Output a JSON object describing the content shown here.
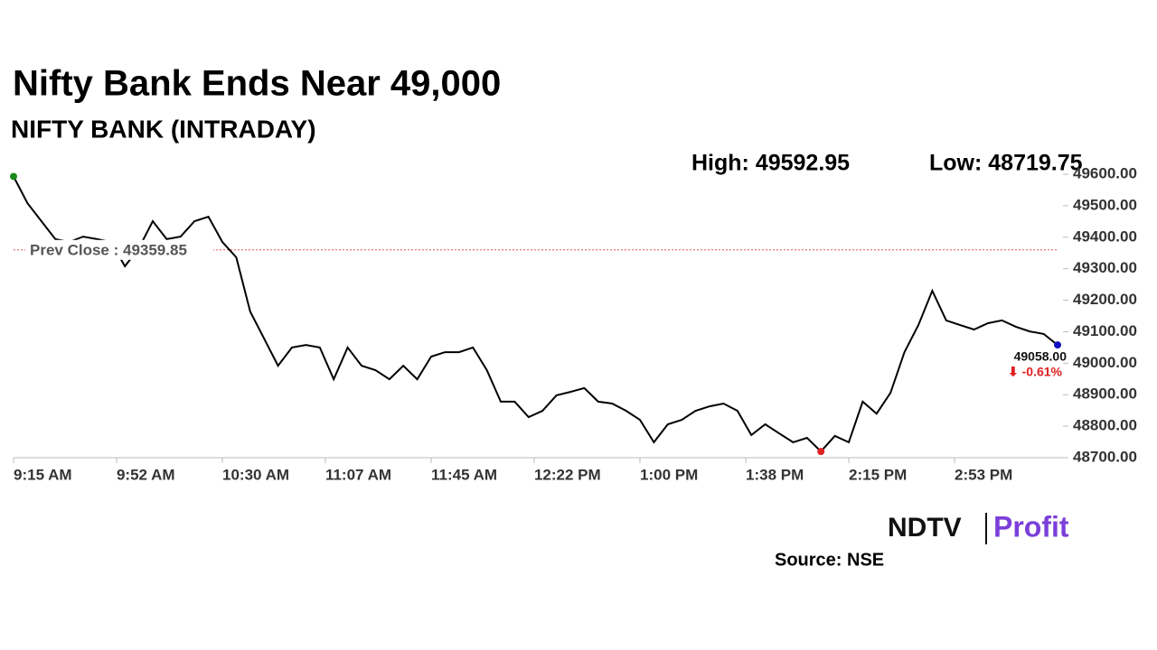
{
  "chart_data": {
    "type": "line",
    "title": "Nifty Bank Ends Near 49,000",
    "subtitle": "NIFTY BANK (INTRADAY)",
    "high_label": "High: 49592.95",
    "low_label": "Low: 48719.75",
    "prev_close": {
      "value": 49359.85,
      "label": "Prev Close : 49359.85"
    },
    "last_label": "49058.00",
    "change_label": "⬇ -0.61%",
    "brand": [
      "NDTV",
      "Profit"
    ],
    "source": "Source: NSE",
    "x": [
      "9:15 AM",
      "9:20 AM",
      "9:25 AM",
      "9:30 AM",
      "9:35 AM",
      "9:40 AM",
      "9:45 AM",
      "9:50 AM",
      "9:55 AM",
      "10:00 AM",
      "10:05 AM",
      "10:10 AM",
      "10:15 AM",
      "10:20 AM",
      "10:25 AM",
      "10:30 AM",
      "10:35 AM",
      "10:40 AM",
      "10:45 AM",
      "10:50 AM",
      "10:55 AM",
      "11:00 AM",
      "11:05 AM",
      "11:10 AM",
      "11:15 AM",
      "11:20 AM",
      "11:25 AM",
      "11:30 AM",
      "11:35 AM",
      "11:40 AM",
      "11:45 AM",
      "11:50 AM",
      "11:55 AM",
      "12:00 PM",
      "12:05 PM",
      "12:10 PM",
      "12:15 PM",
      "12:20 PM",
      "12:25 PM",
      "12:30 PM",
      "12:35 PM",
      "12:40 PM",
      "12:45 PM",
      "12:50 PM",
      "12:55 PM",
      "1:00 PM",
      "1:05 PM",
      "1:10 PM",
      "1:15 PM",
      "1:20 PM",
      "1:25 PM",
      "1:30 PM",
      "1:35 PM",
      "1:40 PM",
      "1:45 PM",
      "1:50 PM",
      "1:55 PM",
      "2:00 PM",
      "2:05 PM",
      "2:10 PM",
      "2:15 PM",
      "2:20 PM",
      "2:25 PM",
      "2:30 PM",
      "2:35 PM",
      "2:40 PM",
      "2:45 PM",
      "2:50 PM",
      "2:55 PM",
      "3:00 PM",
      "3:05 PM",
      "3:10 PM",
      "3:15 PM",
      "3:20 PM",
      "3:25 PM",
      "3:30 PM"
    ],
    "series": [
      {
        "name": "NIFTY BANK",
        "color": "#000000",
        "values": [
          49592.95,
          49508,
          49451,
          49394,
          49385,
          49402,
          49394,
          49385,
          49308,
          49365,
          49451,
          49394,
          49402,
          49451,
          49465,
          49385,
          49336,
          49164,
          49078,
          48992,
          49050,
          49058,
          49050,
          48949,
          49050,
          48992,
          48978,
          48949,
          48992,
          48949,
          49021,
          49035,
          49035,
          49050,
          48978,
          48878,
          48878,
          48829,
          48849,
          48898,
          48909,
          48921,
          48878,
          48872,
          48849,
          48820,
          48749,
          48806,
          48820,
          48849,
          48863,
          48872,
          48849,
          48772,
          48806,
          48777,
          48749,
          48763,
          48719.75,
          48769,
          48749,
          48878,
          48840,
          48906,
          49035,
          49121,
          49230,
          49136,
          49121,
          49107,
          49127,
          49136,
          49116,
          49101,
          49093,
          49058
        ]
      }
    ],
    "high_color": "#1a8a1a",
    "low_color": "#e02020",
    "last_color": "#1010c0",
    "ylim": [
      48700,
      49600
    ],
    "yticks": [
      {
        "value": 48700,
        "label": "48700.00"
      },
      {
        "value": 48800,
        "label": "48800.00"
      },
      {
        "value": 48900,
        "label": "48900.00"
      },
      {
        "value": 49000,
        "label": "49000.00"
      },
      {
        "value": 49100,
        "label": "49100.00"
      },
      {
        "value": 49200,
        "label": "49200.00"
      },
      {
        "value": 49300,
        "label": "49300.00"
      },
      {
        "value": 49400,
        "label": "49400.00"
      },
      {
        "value": 49500,
        "label": "49500.00"
      },
      {
        "value": 49600,
        "label": "49600.00"
      }
    ],
    "xticks": [
      "9:15 AM",
      "9:52 AM",
      "10:30 AM",
      "11:07 AM",
      "11:45 AM",
      "12:22 PM",
      "1:00 PM",
      "1:38 PM",
      "2:15 PM",
      "2:53 PM"
    ]
  }
}
